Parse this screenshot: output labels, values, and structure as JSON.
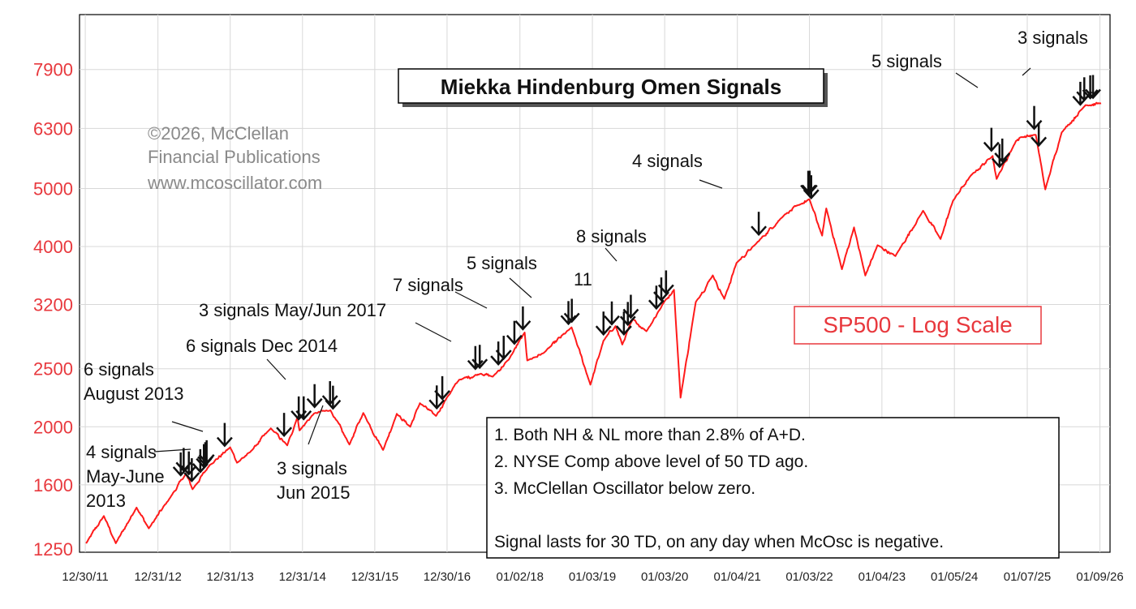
{
  "chart_data": {
    "type": "line",
    "title": "Miekka Hindenburg Omen Signals",
    "y_scale": "log",
    "ylim": [
      1250,
      9400
    ],
    "y_ticks": [
      1250,
      1600,
      2000,
      2500,
      3200,
      4000,
      5000,
      6300,
      7900
    ],
    "x_ticks": [
      "12/30/11",
      "12/31/12",
      "12/31/13",
      "12/31/14",
      "12/31/15",
      "12/30/16",
      "01/02/18",
      "01/03/19",
      "01/03/20",
      "01/04/21",
      "01/03/22",
      "01/04/23",
      "01/05/24",
      "01/07/25",
      "01/09/26"
    ],
    "xlim": [
      "2011-12-01",
      "2026-03-01"
    ],
    "grid": true,
    "series": [
      {
        "name": "SP500 - Log Scale",
        "color": "#ff1a1a",
        "x": [
          "2012-01-03",
          "2012-04-02",
          "2012-06-01",
          "2012-09-14",
          "2012-11-15",
          "2013-03-01",
          "2013-05-21",
          "2013-06-24",
          "2013-09-18",
          "2013-12-31",
          "2014-02-03",
          "2014-04-11",
          "2014-07-24",
          "2014-10-15",
          "2014-12-05",
          "2014-12-16",
          "2015-02-27",
          "2015-05-21",
          "2015-08-25",
          "2015-11-03",
          "2016-02-11",
          "2016-04-20",
          "2016-06-27",
          "2016-08-15",
          "2016-11-04",
          "2016-12-30",
          "2017-03-01",
          "2017-06-19",
          "2017-08-18",
          "2017-11-07",
          "2018-01-26",
          "2018-02-08",
          "2018-05-01",
          "2018-09-20",
          "2018-12-24",
          "2019-02-28",
          "2019-04-30",
          "2019-06-03",
          "2019-07-26",
          "2019-10-03",
          "2019-12-31",
          "2020-02-19",
          "2020-03-23",
          "2020-06-08",
          "2020-09-02",
          "2020-10-30",
          "2020-12-31",
          "2021-04-01",
          "2021-08-31",
          "2021-11-18",
          "2022-01-03",
          "2022-03-08",
          "2022-03-29",
          "2022-06-16",
          "2022-08-16",
          "2022-10-12",
          "2022-12-13",
          "2023-03-13",
          "2023-07-31",
          "2023-10-27",
          "2023-12-29",
          "2024-03-28",
          "2024-07-16",
          "2024-08-05",
          "2024-11-11",
          "2024-12-06",
          "2025-02-19",
          "2025-04-08",
          "2025-06-30",
          "2025-10-28",
          "2026-01-15"
        ],
        "y": [
          1277,
          1419,
          1278,
          1466,
          1353,
          1520,
          1669,
          1573,
          1725,
          1848,
          1742,
          1815,
          1988,
          1862,
          2075,
          1972,
          2105,
          2131,
          1868,
          2109,
          1829,
          2102,
          2000,
          2190,
          2085,
          2239,
          2396,
          2453,
          2425,
          2591,
          2873,
          2581,
          2655,
          2931,
          2351,
          2784,
          2946,
          2744,
          3025,
          2888,
          3231,
          3386,
          2237,
          3232,
          3580,
          3270,
          3756,
          4020,
          4523,
          4705,
          4796,
          4170,
          4632,
          3666,
          4305,
          3577,
          4020,
          3856,
          4589,
          4117,
          4770,
          5254,
          5667,
          5186,
          6001,
          6090,
          6144,
          4982,
          6205,
          6890,
          6940
        ]
      }
    ],
    "signals": [
      {
        "date": "2013-04-25",
        "label": "4 signals May-June 2013"
      },
      {
        "date": "2013-05-10"
      },
      {
        "date": "2013-06-05"
      },
      {
        "date": "2013-06-20"
      },
      {
        "date": "2013-08-02",
        "label": "6 signals August 2013"
      },
      {
        "date": "2013-08-20"
      },
      {
        "date": "2013-08-27"
      },
      {
        "date": "2013-09-03"
      },
      {
        "date": "2013-12-03"
      },
      {
        "date": "2014-09-29",
        "label": "6 signals Dec 2014"
      },
      {
        "date": "2014-12-12"
      },
      {
        "date": "2015-01-06"
      },
      {
        "date": "2015-03-02",
        "label": "3 signals Jun 2015"
      },
      {
        "date": "2015-05-19"
      },
      {
        "date": "2015-06-03"
      },
      {
        "date": "2016-11-08"
      },
      {
        "date": "2016-12-06"
      },
      {
        "date": "2017-05-22",
        "label": "3 signals May/Jun 2017"
      },
      {
        "date": "2017-06-13"
      },
      {
        "date": "2017-09-15",
        "label": "7 signals"
      },
      {
        "date": "2017-10-12"
      },
      {
        "date": "2017-12-05"
      },
      {
        "date": "2018-01-17"
      },
      {
        "date": "2018-09-04",
        "label": "5 signals"
      },
      {
        "date": "2018-09-21"
      },
      {
        "date": "2019-02-28",
        "label": "11"
      },
      {
        "date": "2019-04-11"
      },
      {
        "date": "2019-06-11"
      },
      {
        "date": "2019-07-01"
      },
      {
        "date": "2019-07-16"
      },
      {
        "date": "2019-11-22",
        "label": "8 signals"
      },
      {
        "date": "2019-12-17"
      },
      {
        "date": "2020-01-10"
      },
      {
        "date": "2021-04-22"
      },
      {
        "date": "2021-12-28",
        "label": "4 signals"
      },
      {
        "date": "2022-01-04"
      },
      {
        "date": "2022-01-12"
      },
      {
        "date": "2024-07-10"
      },
      {
        "date": "2024-08-20"
      },
      {
        "date": "2024-09-03"
      },
      {
        "date": "2025-02-11"
      },
      {
        "date": "2025-03-06"
      },
      {
        "date": "2025-10-02",
        "label": "5 signals"
      },
      {
        "date": "2025-10-22"
      },
      {
        "date": "2025-11-21",
        "label": "3 signals"
      },
      {
        "date": "2025-12-05"
      }
    ]
  },
  "title": "Miekka Hindenburg Omen Signals",
  "copyright": [
    "©2026, McClellan",
    "Financial Publications",
    "www.mcoscillator.com"
  ],
  "series_label": "SP500 - Log Scale",
  "annotations": [
    {
      "lines": [
        "3 signals"
      ],
      "target": "2025-12-03"
    },
    {
      "lines": [
        "5 signals"
      ],
      "target": "2025-10-15"
    },
    {
      "lines": [
        "4 signals"
      ],
      "target": "2022-01-02"
    },
    {
      "lines": [
        "8 signals"
      ],
      "target": "2019-12-15"
    },
    {
      "lines": [
        "11"
      ],
      "target": "2019-04-11"
    },
    {
      "lines": [
        "5 signals"
      ],
      "target": "2018-09-10"
    },
    {
      "lines": [
        "7 signals"
      ],
      "target": "2018-01-10"
    },
    {
      "lines": [
        "3 signals May/Jun 2017"
      ],
      "target": "2017-05-25"
    },
    {
      "lines": [
        "6 signals Dec 2014"
      ],
      "target": "2014-10-20"
    },
    {
      "lines": [
        "6 signals",
        "August 2013"
      ],
      "target": "2013-07-20"
    },
    {
      "lines": [
        "4 signals",
        "May-June",
        "2013"
      ],
      "target": "2013-04-20"
    },
    {
      "lines": [
        "3 signals",
        "Jun 2015"
      ],
      "target": "2015-05-01"
    }
  ],
  "rules": [
    "1. Both NH & NL more than 2.8% of A+D.",
    "2. NYSE Comp above level of 50 TD ago.",
    "3. McClellan Oscillator below zero.",
    "",
    "Signal lasts for 30 TD, on any day when McOsc is negative."
  ],
  "colors": {
    "line": "#ff1a1a",
    "axis_labels": "#e8383d",
    "grid": "#d8d8d8",
    "arrow": "#111111"
  }
}
